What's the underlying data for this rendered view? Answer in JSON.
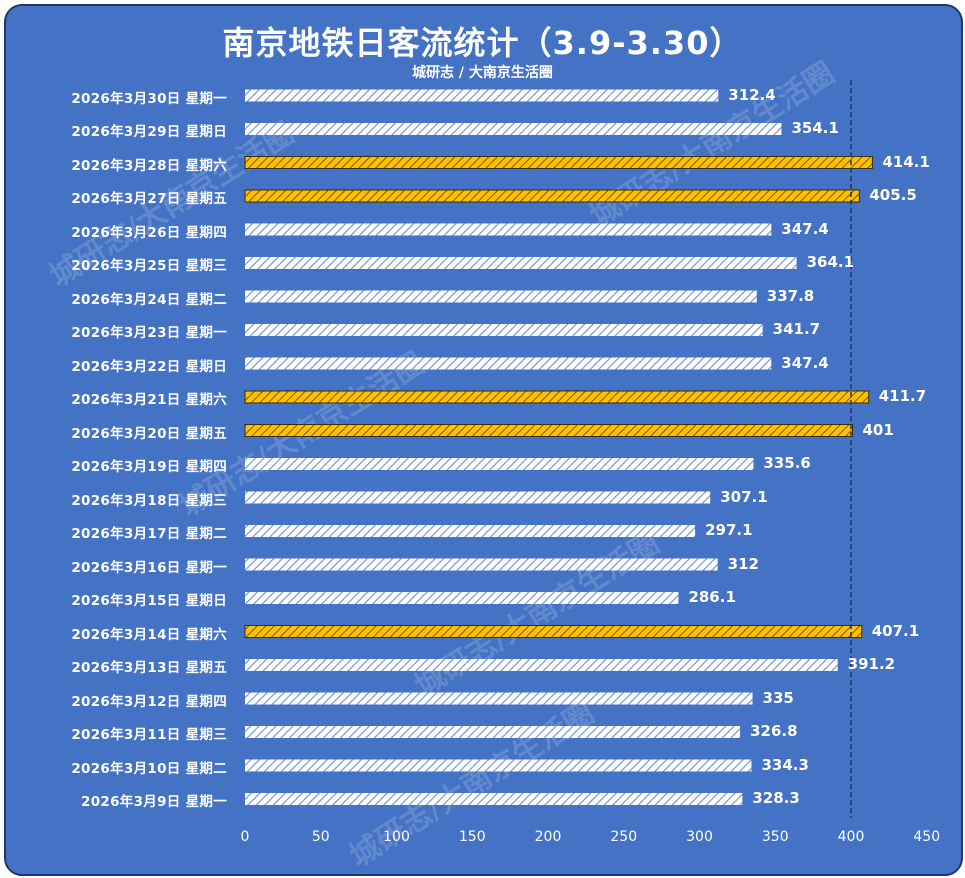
{
  "chart_data": {
    "type": "bar",
    "orientation": "horizontal",
    "title": "南京地铁日客流统计（3.9-3.30）",
    "subtitle": "城研志 / 大南京生活圈",
    "watermark": "城研志/大南京生活圈",
    "xlim": [
      0,
      450
    ],
    "xticks": [
      0,
      50,
      100,
      150,
      200,
      250,
      300,
      350,
      400,
      450
    ],
    "reference_line": 400,
    "colors": {
      "background": "#4472c4",
      "normal_bar": "#ffffff",
      "highlight_bar": "#ffc000",
      "reference_line": "#1f3864"
    },
    "categories": [
      "2026年3月30日 星期一",
      "2026年3月29日 星期日",
      "2026年3月28日 星期六",
      "2026年3月27日 星期五",
      "2026年3月26日 星期四",
      "2026年3月25日 星期三",
      "2026年3月24日 星期二",
      "2026年3月23日 星期一",
      "2026年3月22日 星期日",
      "2026年3月21日 星期六",
      "2026年3月20日 星期五",
      "2026年3月19日 星期四",
      "2026年3月18日 星期三",
      "2026年3月17日 星期二",
      "2026年3月16日 星期一",
      "2026年3月15日 星期日",
      "2026年3月14日 星期六",
      "2026年3月13日 星期五",
      "2026年3月12日 星期四",
      "2026年3月11日 星期三",
      "2026年3月10日 星期二",
      "2026年3月9日 星期一"
    ],
    "values": [
      312.4,
      354.1,
      414.1,
      405.5,
      347.4,
      364.1,
      337.8,
      341.7,
      347.4,
      411.7,
      401,
      335.6,
      307.1,
      297.1,
      312,
      286.1,
      407.1,
      391.2,
      335,
      326.8,
      334.3,
      328.3
    ],
    "labels": [
      "312.4",
      "354.1",
      "414.1",
      "405.5",
      "347.4",
      "364.1",
      "337.8",
      "341.7",
      "347.4",
      "411.7",
      "401",
      "335.6",
      "307.1",
      "297.1",
      "312",
      "286.1",
      "407.1",
      "391.2",
      "335",
      "326.8",
      "334.3",
      "328.3"
    ],
    "highlighted": [
      false,
      false,
      true,
      true,
      false,
      false,
      false,
      false,
      false,
      true,
      true,
      false,
      false,
      false,
      false,
      false,
      true,
      false,
      false,
      false,
      false,
      false
    ]
  }
}
